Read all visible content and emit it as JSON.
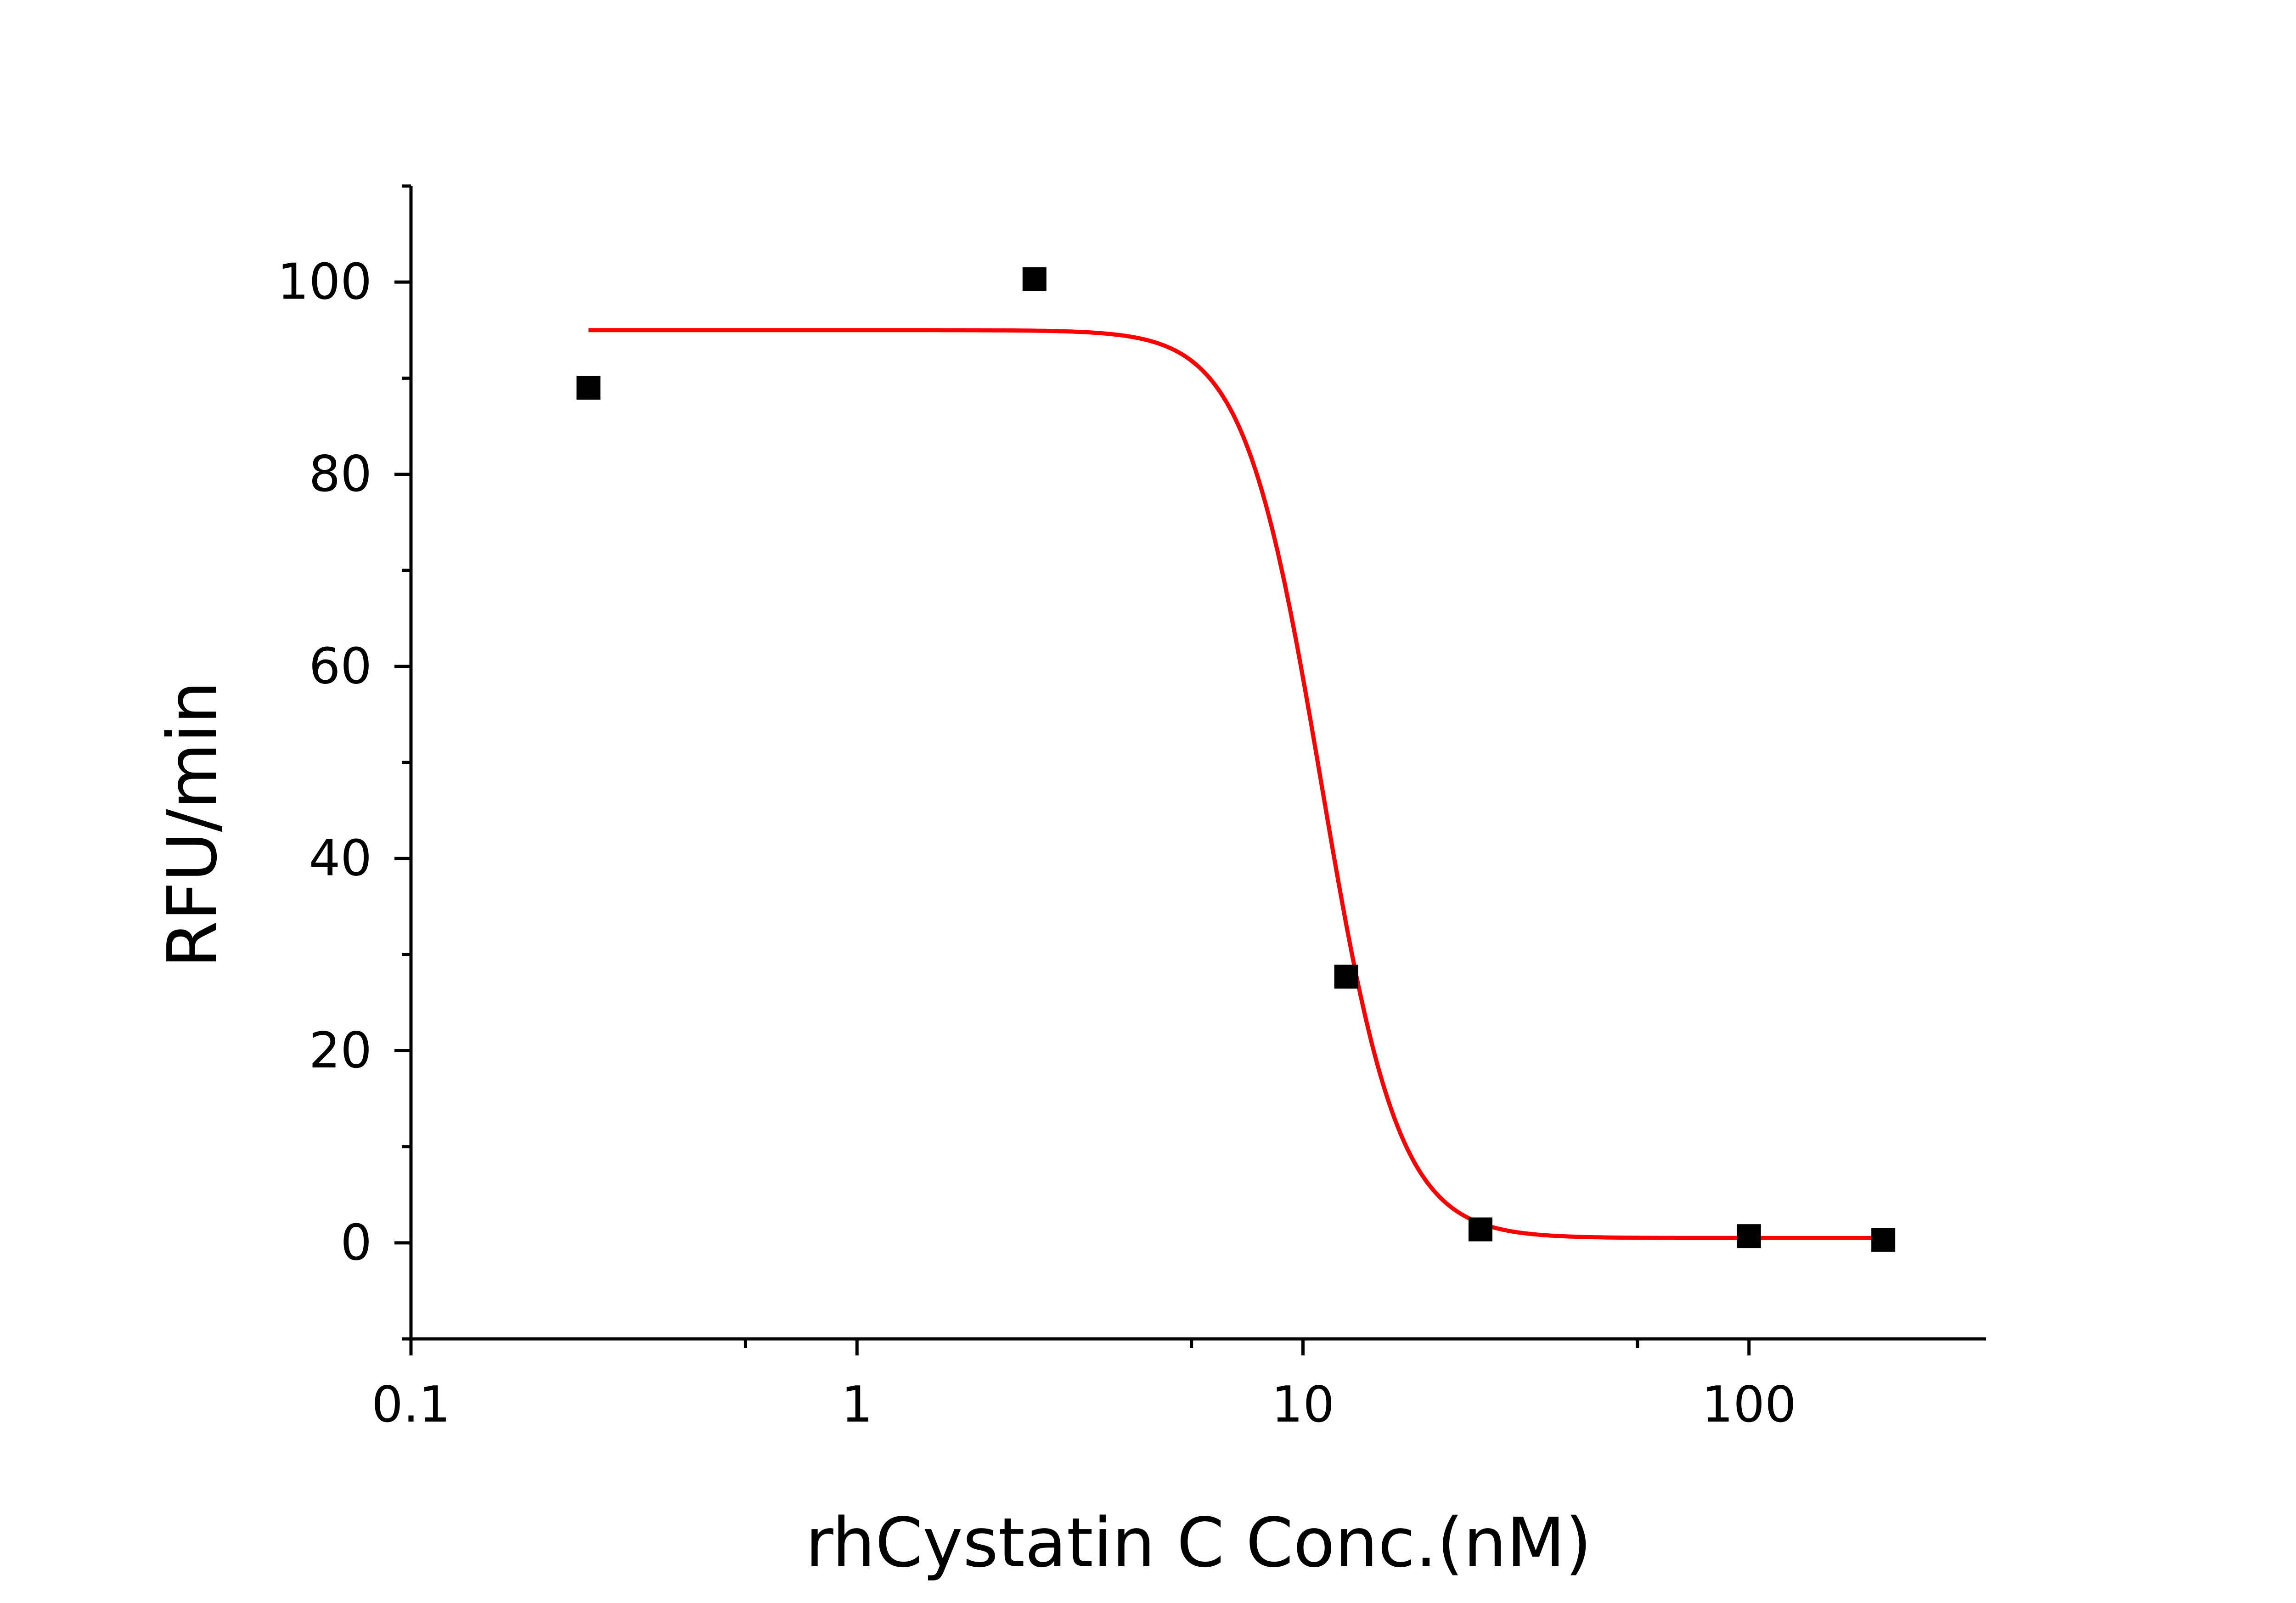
{
  "chart_data": {
    "type": "scatter",
    "xlabel": "rhCystatin C Conc.(nM)",
    "ylabel": "RFU/min",
    "xscale": "log",
    "xlim": [
      0.1,
      340
    ],
    "ylim": [
      -10,
      110
    ],
    "x_ticks": [
      {
        "value": 0.1,
        "label": "0.1"
      },
      {
        "value": 1,
        "label": "1"
      },
      {
        "value": 10,
        "label": "10"
      },
      {
        "value": 100,
        "label": "100"
      }
    ],
    "x_minor_ticks": [
      0.5623,
      5.623,
      56.23
    ],
    "y_ticks": [
      {
        "value": 0,
        "label": "0"
      },
      {
        "value": 20,
        "label": "20"
      },
      {
        "value": 40,
        "label": "40"
      },
      {
        "value": 60,
        "label": "60"
      },
      {
        "value": 80,
        "label": "80"
      },
      {
        "value": 100,
        "label": "100"
      }
    ],
    "y_minor_ticks": [
      -10,
      10,
      30,
      50,
      70,
      90,
      110
    ],
    "series": [
      {
        "points": [
          {
            "x": 0.25,
            "y": 89.0
          },
          {
            "x": 2.5,
            "y": 100.3
          },
          {
            "x": 12.5,
            "y": 27.7
          },
          {
            "x": 25,
            "y": 1.4
          },
          {
            "x": 100,
            "y": 0.7
          },
          {
            "x": 200,
            "y": 0.3
          }
        ],
        "marker": "square",
        "color": "#000000"
      }
    ],
    "fit_curve": {
      "model": "four-parameter logistic",
      "top": 95.0,
      "bottom": 0.5,
      "ic50": 11.0,
      "hill": 5.0,
      "x_range": [
        0.25,
        200
      ],
      "color": "#ff0000"
    },
    "grid": false,
    "legend": "none"
  }
}
